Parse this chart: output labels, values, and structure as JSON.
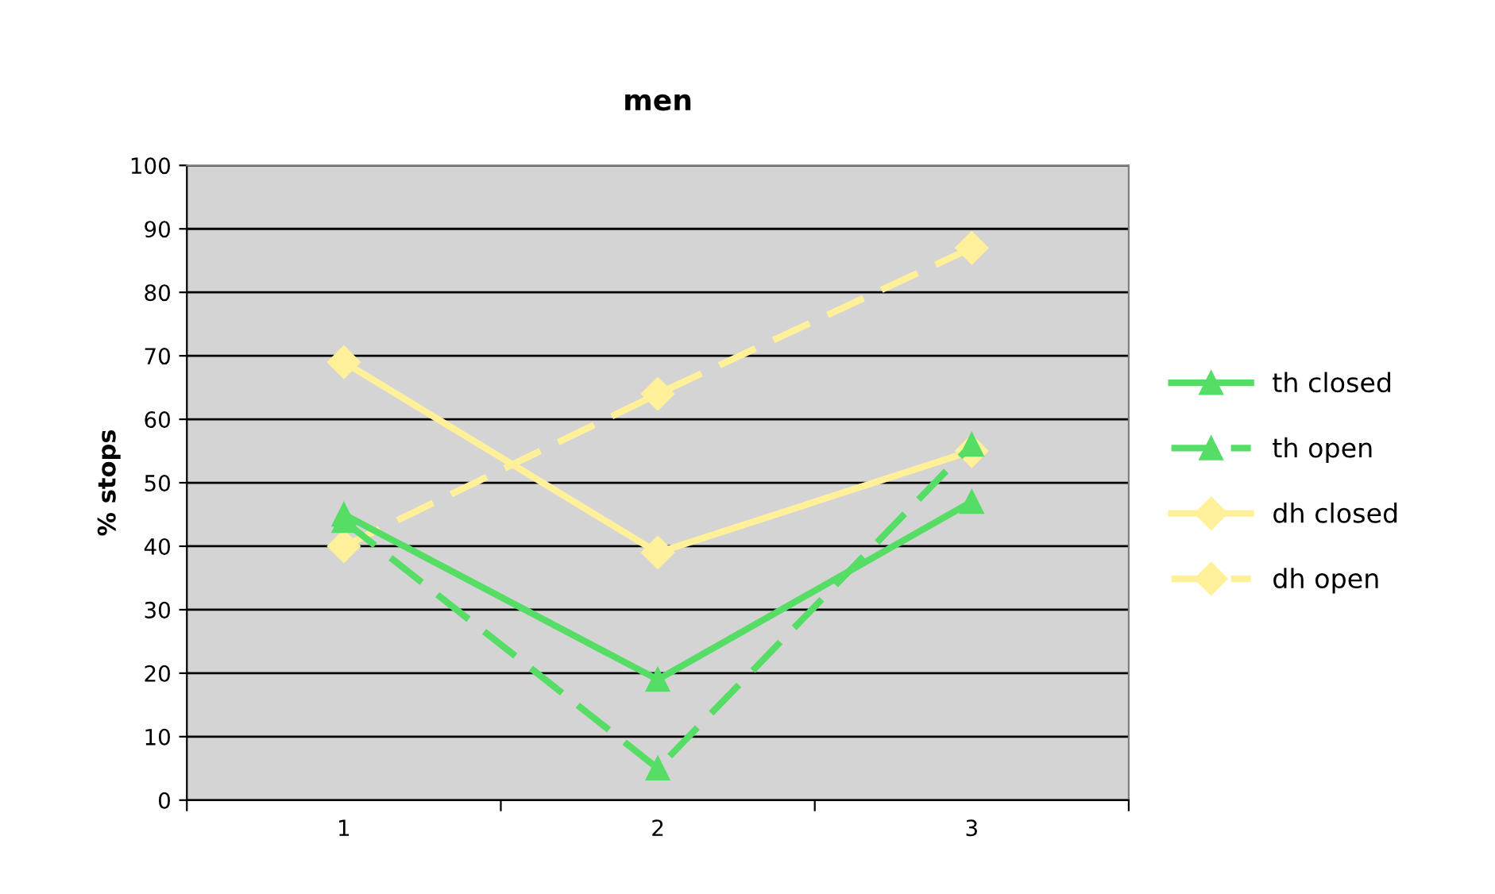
{
  "chart_data": {
    "type": "line",
    "title": "men",
    "ylabel": "% stops",
    "categories": [
      "1",
      "2",
      "3"
    ],
    "series": [
      {
        "name": "th closed",
        "color": "#55dd66",
        "values": [
          45,
          19,
          47
        ],
        "marker": "triangle",
        "line_style": "solid"
      },
      {
        "name": "th open",
        "color": "#55dd66",
        "values": [
          44,
          5,
          56
        ],
        "marker": "triangle",
        "line_style": "dashed"
      },
      {
        "name": "dh closed",
        "color": "#fff099",
        "values": [
          69,
          39,
          55
        ],
        "marker": "diamond",
        "line_style": "solid"
      },
      {
        "name": "dh open",
        "color": "#fff099",
        "values": [
          40,
          64,
          87
        ],
        "marker": "diamond",
        "line_style": "dashed"
      }
    ],
    "ylim": [
      0,
      100
    ],
    "yticks": [
      0,
      10,
      20,
      30,
      40,
      50,
      60,
      70,
      80,
      90,
      100
    ],
    "grid": "y",
    "legend": "right"
  }
}
